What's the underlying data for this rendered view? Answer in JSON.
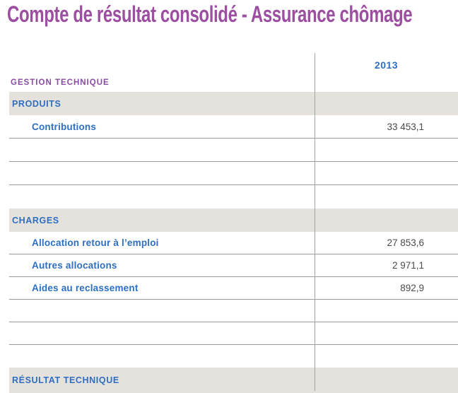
{
  "page_title": "Compte de résultat consolidé - Assurance chômage",
  "colors": {
    "title_purple": "#9c4fa0",
    "heading_purple": "#8b4ba4",
    "label_blue": "#2e6fc2",
    "value_gray": "#4a4a49",
    "band_background": "#e5e1dc",
    "divider_gray": "#9a9a98"
  },
  "table": {
    "corner_label": "GESTION TECHNIQUE",
    "column_header": "2013",
    "rows": [
      {
        "type": "section",
        "label": "PRODUITS",
        "value": "",
        "border": false
      },
      {
        "type": "data",
        "label": "Contributions",
        "value": "33 453,1",
        "border": true
      },
      {
        "type": "empty",
        "label": "",
        "value": "",
        "border": true
      },
      {
        "type": "empty",
        "label": "",
        "value": "",
        "border": true
      },
      {
        "type": "empty",
        "label": "",
        "value": "",
        "border": false
      },
      {
        "type": "section",
        "label": "CHARGES",
        "value": "",
        "border": false
      },
      {
        "type": "data",
        "label": "Allocation retour à l’emploi",
        "value": "27 853,6",
        "border": true
      },
      {
        "type": "data",
        "label": "Autres allocations",
        "value": "2 971,1",
        "border": true
      },
      {
        "type": "data",
        "label": "Aides au reclassement",
        "value": "892,9",
        "border": true
      },
      {
        "type": "empty",
        "label": "",
        "value": "",
        "border": true
      },
      {
        "type": "empty",
        "label": "",
        "value": "",
        "border": true
      },
      {
        "type": "empty",
        "label": "",
        "value": "",
        "border": false
      },
      {
        "type": "section",
        "label": "RÉSULTAT TECHNIQUE",
        "value": "",
        "border": false,
        "last": true
      }
    ]
  }
}
